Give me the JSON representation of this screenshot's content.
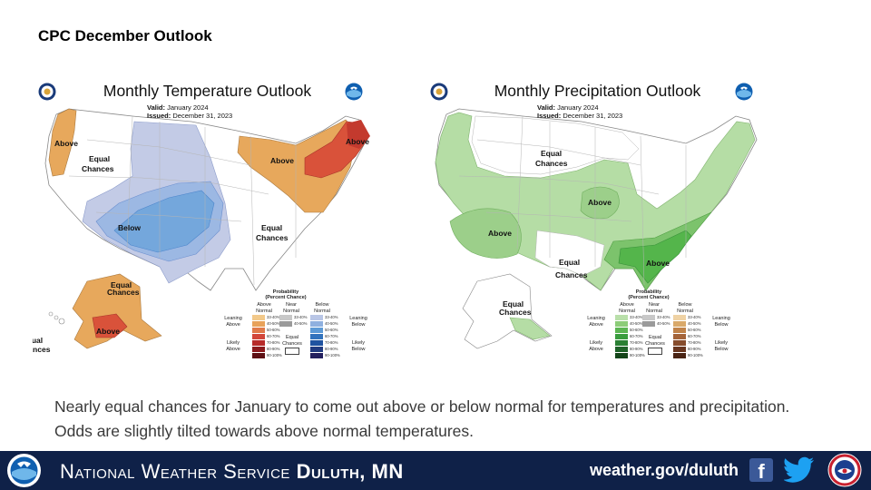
{
  "slide": {
    "title": "CPC December Outlook"
  },
  "temperature_map": {
    "title": "Monthly Temperature Outlook",
    "valid_label": "Valid:",
    "valid_value": "January 2024",
    "issued_label": "Issued:",
    "issued_value": "December 31, 2023",
    "regions": {
      "pacific_nw": "Above",
      "west_equal": [
        "Equal",
        "Chances"
      ],
      "center_below": "Below",
      "great_lakes": "Above",
      "new_england": "Above",
      "south_equal": [
        "Equal",
        "Chances"
      ],
      "alaska_equal": [
        "Equal",
        "Chances"
      ],
      "alaska_above": "Above",
      "hawaii_equal": [
        "Equal",
        "Chances"
      ]
    }
  },
  "precipitation_map": {
    "title": "Monthly Precipitation Outlook",
    "valid_label": "Valid:",
    "valid_value": "January 2024",
    "issued_label": "Issued:",
    "issued_value": "December 31, 2023",
    "regions": {
      "north_equal": [
        "Equal",
        "Chances"
      ],
      "midwest_above": "Above",
      "southwest_above": "Above",
      "south_equal": [
        "Equal",
        "Chances"
      ],
      "southeast_above": "Above",
      "alaska_equal": [
        "Equal",
        "Chances"
      ]
    }
  },
  "legend_temp": {
    "title": [
      "Probability",
      "(Percent Chance)"
    ],
    "col_above": [
      "Above",
      "Normal"
    ],
    "col_near": [
      "Near",
      "Normal"
    ],
    "col_below": [
      "Below",
      "Normal"
    ],
    "leaning_above": [
      "Leaning",
      "Above"
    ],
    "likely_above": [
      "Likely",
      "Above"
    ],
    "leaning_below": [
      "Leaning",
      "Below"
    ],
    "likely_below": [
      "Likely",
      "Below"
    ],
    "equal_chances": [
      "Equal",
      "Chances"
    ],
    "ranges": [
      "33-40%",
      "40-50%",
      "50-60%",
      "60-70%",
      "70-80%",
      "80-90%",
      "90-100%"
    ],
    "near_ranges": [
      "33-40%",
      "40-50%"
    ],
    "above_colors": [
      "#f2c98a",
      "#e8a25a",
      "#e07a4a",
      "#d2463a",
      "#b72b2a",
      "#8c1a1e",
      "#5e1014"
    ],
    "near_colors": [
      "#c8c8c8",
      "#9a9a9a"
    ],
    "below_colors": [
      "#b9c6e6",
      "#8fb0df",
      "#5d9ad6",
      "#3273bd",
      "#1f53a0",
      "#213b80",
      "#221f5e"
    ]
  },
  "legend_precip": {
    "title": [
      "Probability",
      "(Percent Chance)"
    ],
    "col_above": [
      "Above",
      "Normal"
    ],
    "col_near": [
      "Near",
      "Normal"
    ],
    "col_below": [
      "Below",
      "Normal"
    ],
    "leaning_above": [
      "Leaning",
      "Above"
    ],
    "likely_above": [
      "Likely",
      "Above"
    ],
    "leaning_below": [
      "Leaning",
      "Below"
    ],
    "likely_below": [
      "Likely",
      "Below"
    ],
    "equal_chances": [
      "Equal",
      "Chances"
    ],
    "ranges": [
      "33-40%",
      "40-50%",
      "50-60%",
      "60-70%",
      "70-80%",
      "80-90%",
      "90-100%"
    ],
    "near_ranges": [
      "33-40%",
      "40-50%"
    ],
    "above_colors": [
      "#b9dfaa",
      "#8ccc78",
      "#5cb552",
      "#3a9c3e",
      "#2a7f33",
      "#1f6228",
      "#144519"
    ],
    "near_colors": [
      "#c8c8c8",
      "#9a9a9a"
    ],
    "below_colors": [
      "#efd2a4",
      "#d9a96a",
      "#c0834a",
      "#a4643a",
      "#864c2c",
      "#683620",
      "#4a2414"
    ]
  },
  "caption": "Nearly equal chances for January to come out above or below normal for temperatures and precipitation. Odds are slightly tilted towards above normal temperatures.",
  "footer": {
    "org": "National Weather Service",
    "office": "Duluth, MN",
    "url": "weather.gov/duluth",
    "facebook_icon": "facebook-icon",
    "twitter_icon": "twitter-icon"
  },
  "colors": {
    "footer_bg": "#0f2148",
    "temp_above_light": "#e7a85c",
    "temp_above_dark": "#d9523a",
    "temp_below_light": "#c3cbe6",
    "temp_below_dark": "#74a7dc",
    "precip_above_light": "#b5dda5",
    "precip_above_dark": "#54b54b"
  }
}
